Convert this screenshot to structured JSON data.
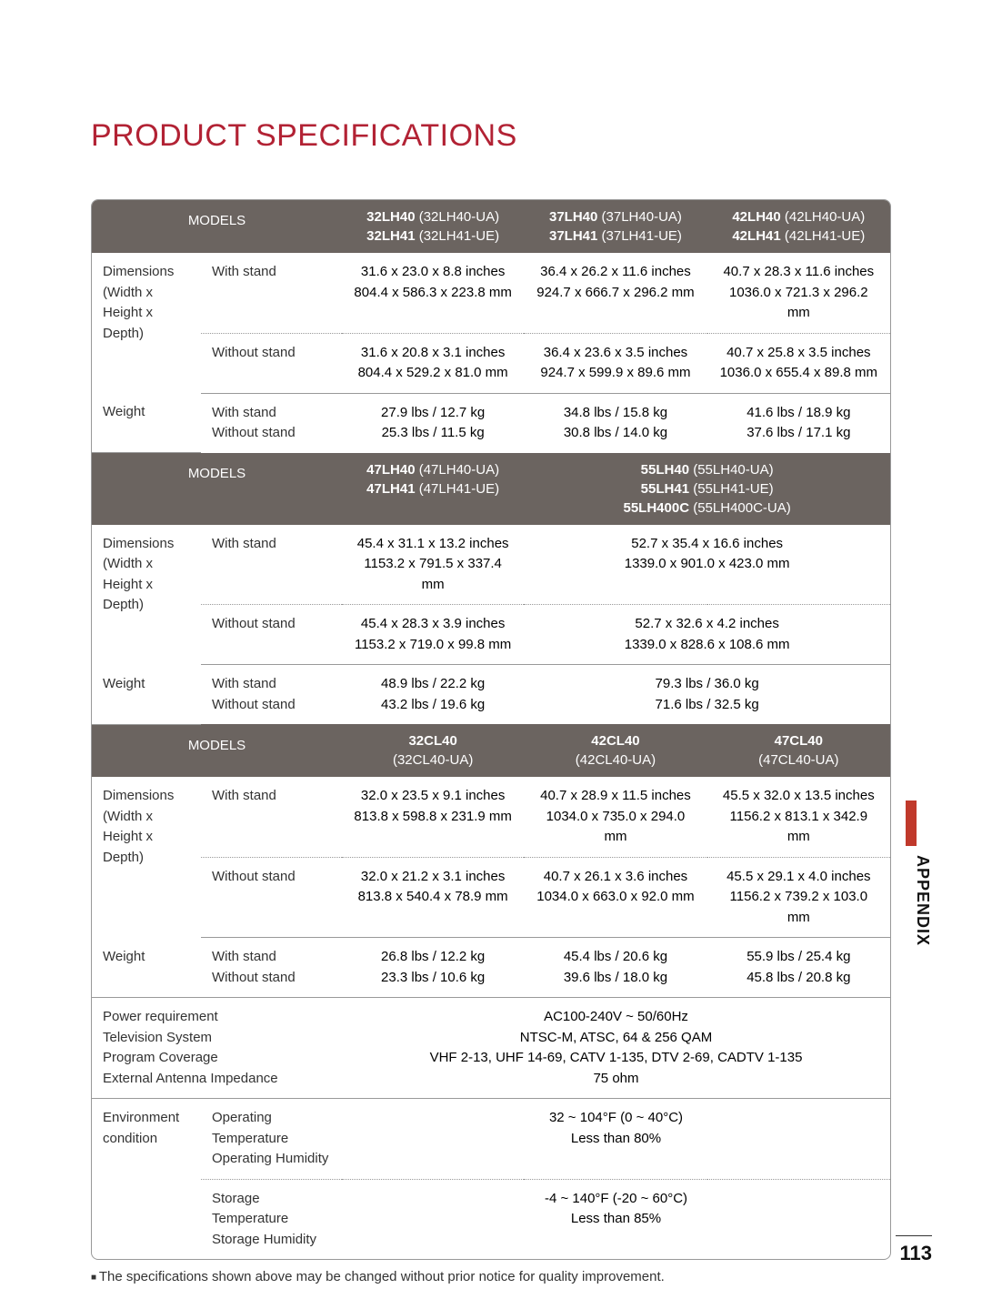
{
  "title": "PRODUCT SPECIFICATIONS",
  "title_color": "#b22234",
  "header_bg": "#6b6460",
  "sidebar_label": "APPENDIX",
  "side_tab_color": "#c0392b",
  "page_number": "113",
  "footnote": "The specifications shown above may be changed without prior notice for quality improvement.",
  "labels": {
    "models": "MODELS",
    "dimensions": "Dimensions",
    "dimensions_sub": "(Width x Height x Depth)",
    "with_stand": "With stand",
    "without_stand": "Without stand",
    "weight": "Weight",
    "power": "Power requirement",
    "tv_system": "Television System",
    "program": "Program Coverage",
    "antenna": "External Antenna Impedance",
    "env": "Environment condition",
    "op_temp": "Operating Temperature",
    "op_hum": "Operating Humidity",
    "st_temp": "Storage Temperature",
    "st_hum": "Storage Humidity"
  },
  "section1": {
    "cols": [
      {
        "b1": "32LH40",
        "p1": "(32LH40-UA)",
        "b2": "32LH41",
        "p2": "(32LH41-UE)"
      },
      {
        "b1": "37LH40",
        "p1": "(37LH40-UA)",
        "b2": "37LH41",
        "p2": "(37LH41-UE)"
      },
      {
        "b1": "42LH40",
        "p1": "(42LH40-UA)",
        "b2": "42LH41",
        "p2": "(42LH41-UE)"
      }
    ],
    "dim_ws": [
      {
        "in": "31.6 x 23.0 x 8.8 inches",
        "mm": "804.4 x 586.3 x 223.8 mm"
      },
      {
        "in": "36.4 x 26.2 x 11.6 inches",
        "mm": "924.7 x 666.7 x 296.2 mm"
      },
      {
        "in": "40.7 x 28.3 x 11.6 inches",
        "mm": "1036.0 x 721.3 x 296.2 mm"
      }
    ],
    "dim_wos": [
      {
        "in": "31.6 x 20.8 x 3.1 inches",
        "mm": "804.4 x 529.2 x 81.0 mm"
      },
      {
        "in": "36.4 x 23.6 x 3.5 inches",
        "mm": "924.7 x 599.9 x 89.6 mm"
      },
      {
        "in": "40.7 x 25.8 x 3.5 inches",
        "mm": "1036.0 x 655.4 x 89.8 mm"
      }
    ],
    "weight": [
      {
        "ws": "27.9 lbs / 12.7 kg",
        "wos": "25.3 lbs / 11.5 kg"
      },
      {
        "ws": "34.8 lbs / 15.8 kg",
        "wos": "30.8 lbs / 14.0 kg"
      },
      {
        "ws": "41.6 lbs / 18.9 kg",
        "wos": "37.6 lbs / 17.1 kg"
      }
    ]
  },
  "section2": {
    "cols": [
      {
        "lines": [
          {
            "b": "47LH40",
            "p": "(47LH40-UA)"
          },
          {
            "b": "47LH41",
            "p": "(47LH41-UE)"
          }
        ]
      },
      {
        "lines": [
          {
            "b": "55LH40",
            "p": "(55LH40-UA)"
          },
          {
            "b": "55LH41",
            "p": "(55LH41-UE)"
          },
          {
            "b": "55LH400C",
            "p": "(55LH400C-UA)"
          }
        ]
      }
    ],
    "dim_ws": [
      {
        "in": "45.4 x 31.1 x 13.2 inches",
        "mm": "1153.2 x 791.5 x 337.4 mm"
      },
      {
        "in": "52.7 x 35.4 x 16.6 inches",
        "mm": "1339.0 x 901.0 x 423.0 mm"
      }
    ],
    "dim_wos": [
      {
        "in": "45.4 x 28.3 x 3.9 inches",
        "mm": "1153.2 x 719.0 x 99.8 mm"
      },
      {
        "in": "52.7 x 32.6 x 4.2 inches",
        "mm": "1339.0 x 828.6 x 108.6 mm"
      }
    ],
    "weight": [
      {
        "ws": "48.9 lbs / 22.2 kg",
        "wos": "43.2 lbs / 19.6 kg"
      },
      {
        "ws": "79.3 lbs / 36.0 kg",
        "wos": "71.6 lbs / 32.5 kg"
      }
    ]
  },
  "section3": {
    "cols": [
      {
        "b": "32CL40",
        "p": "(32CL40-UA)"
      },
      {
        "b": "42CL40",
        "p": "(42CL40-UA)"
      },
      {
        "b": "47CL40",
        "p": "(47CL40-UA)"
      }
    ],
    "dim_ws": [
      {
        "in": "32.0 x 23.5 x 9.1 inches",
        "mm": "813.8 x 598.8 x 231.9 mm"
      },
      {
        "in": "40.7 x 28.9 x 11.5 inches",
        "mm": "1034.0 x 735.0 x 294.0 mm"
      },
      {
        "in": "45.5 x 32.0 x 13.5 inches",
        "mm": "1156.2 x 813.1 x 342.9 mm"
      }
    ],
    "dim_wos": [
      {
        "in": "32.0 x 21.2 x 3.1 inches",
        "mm": "813.8 x 540.4 x 78.9 mm"
      },
      {
        "in": "40.7 x 26.1 x 3.6 inches",
        "mm": "1034.0 x 663.0 x 92.0 mm"
      },
      {
        "in": "45.5 x 29.1 x 4.0 inches",
        "mm": "1156.2 x 739.2 x 103.0 mm"
      }
    ],
    "weight": [
      {
        "ws": "26.8 lbs / 12.2 kg",
        "wos": "23.3 lbs / 10.6 kg"
      },
      {
        "ws": "45.4 lbs / 20.6 kg",
        "wos": "39.6 lbs / 18.0 kg"
      },
      {
        "ws": "55.9 lbs / 25.4 kg",
        "wos": "45.8 lbs / 20.8 kg"
      }
    ]
  },
  "general": {
    "power": "AC100-240V ~ 50/60Hz",
    "tv_system": "NTSC-M, ATSC, 64 & 256 QAM",
    "program": "VHF 2-13, UHF 14-69, CATV 1-135, DTV 2-69, CADTV 1-135",
    "antenna": "75 ohm",
    "op_temp": "32 ~ 104°F (0 ~ 40°C)",
    "op_hum": "Less than 80%",
    "st_temp": "-4 ~ 140°F (-20 ~ 60°C)",
    "st_hum": "Less than 85%"
  }
}
